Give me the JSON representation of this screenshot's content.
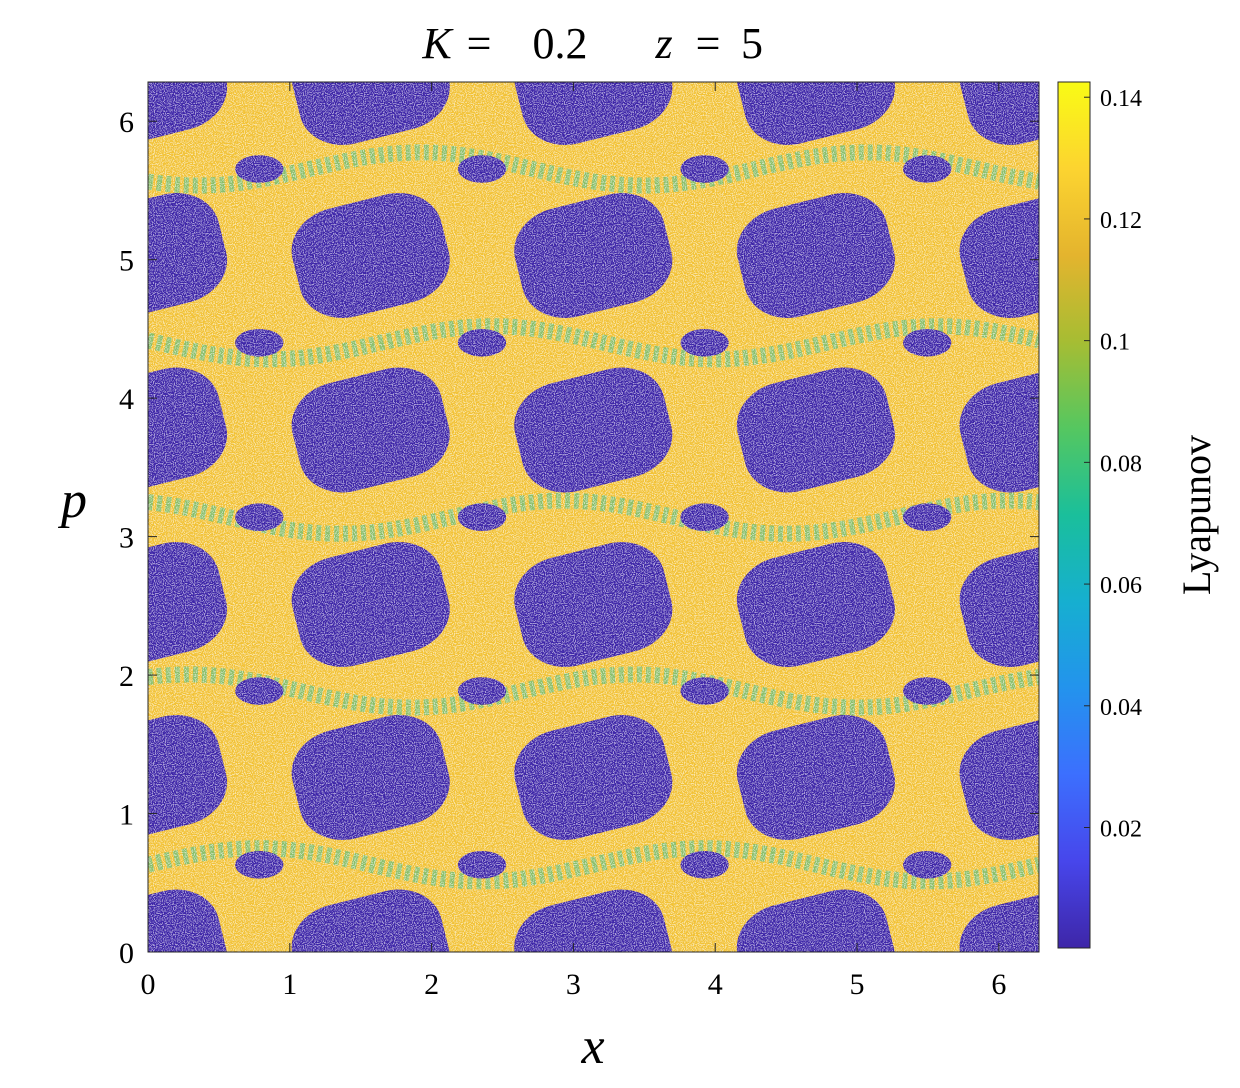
{
  "chart_data": {
    "type": "heatmap",
    "title": {
      "k_symbol": "K",
      "k_value": "0.2",
      "z_symbol": "z",
      "z_value": "5",
      "equals": "="
    },
    "xlabel": "x",
    "ylabel": "p",
    "xlim": [
      0,
      6.2832
    ],
    "ylim": [
      0,
      6.2832
    ],
    "x_ticks": [
      0,
      1,
      2,
      3,
      4,
      5,
      6
    ],
    "y_ticks": [
      0,
      1,
      2,
      3,
      4,
      5,
      6
    ],
    "grid": false,
    "colorbar": {
      "label": "Lyapunov",
      "range": [
        0.0002,
        0.1425
      ],
      "ticks": [
        "0.02",
        "0.04",
        "0.06",
        "0.08",
        "0.1",
        "0.12",
        "0.14"
      ],
      "tick_values": [
        0.02,
        0.04,
        0.06,
        0.08,
        0.1,
        0.12,
        0.14
      ],
      "colormap": "parula",
      "colormap_stops": [
        "#3e26a8",
        "#4746eb",
        "#3c6ffe",
        "#2393ed",
        "#16afd0",
        "#1abf9b",
        "#55c760",
        "#a6bd33",
        "#e4b42e",
        "#fcd430",
        "#f9fb15"
      ]
    },
    "regions": {
      "regular_islands": {
        "lyapunov": 0.0,
        "description_color": "#3e26a8",
        "island_grid_x": [
          0.0,
          1.57,
          3.14,
          4.71,
          6.28
        ],
        "island_grid_p": [
          0.0,
          1.26,
          2.51,
          3.77,
          5.03,
          6.28
        ]
      },
      "chaotic_sea": {
        "lyapunov_typical": 0.13,
        "color": "#f2c236"
      },
      "separatrix_layers": {
        "lyapunov_typical": 0.09,
        "color": "#34bd96"
      }
    }
  }
}
